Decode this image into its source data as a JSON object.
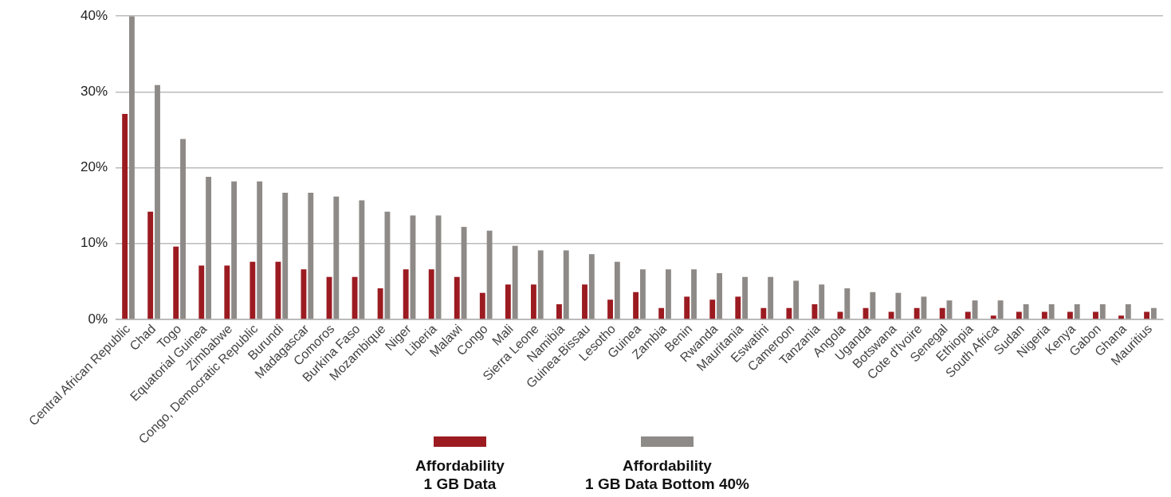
{
  "chart_data": {
    "type": "bar",
    "categories": [
      "Central African Republic",
      "Chad",
      "Togo",
      "Equatorial Guinea",
      "Zimbabwe",
      "Congo, Democratic Republic",
      "Burundi",
      "Madagascar",
      "Comoros",
      "Burkina Faso",
      "Mozambique",
      "Niger",
      "Liberia",
      "Malawi",
      "Congo",
      "Mali",
      "Sierra Leone",
      "Namibia",
      "Guinea-Bissau",
      "Lesotho",
      "Guinea",
      "Zambia",
      "Benin",
      "Rwanda",
      "Mauritania",
      "Eswatini",
      "Cameroon",
      "Tanzania",
      "Angola",
      "Uganda",
      "Botswana",
      "Cote d'Ivoire",
      "Senegal",
      "Ethiopia",
      "South Africa",
      "Sudan",
      "Nigeria",
      "Kenya",
      "Gabon",
      "Ghana",
      "Mauritius"
    ],
    "series": [
      {
        "name": "Affordability\n1 GB Data",
        "color": "#9b1b21",
        "values": [
          27.1,
          14.2,
          9.6,
          7.1,
          7.1,
          7.6,
          7.6,
          6.6,
          5.6,
          5.6,
          4.1,
          6.6,
          6.6,
          5.6,
          3.5,
          4.6,
          4.6,
          2.0,
          4.6,
          2.6,
          3.6,
          1.5,
          3.0,
          2.6,
          3.0,
          1.5,
          1.5,
          2.0,
          1.0,
          1.5,
          1.0,
          1.5,
          1.5,
          1.0,
          0.5,
          1.0,
          1.0,
          1.0,
          1.0,
          0.5,
          1.0
        ]
      },
      {
        "name": "Affordability\n1 GB Data Bottom 40%",
        "color": "#8e8a87",
        "values": [
          40,
          30.9,
          23.8,
          18.8,
          18.2,
          18.2,
          16.7,
          16.7,
          16.2,
          15.7,
          14.2,
          13.7,
          13.7,
          12.2,
          11.7,
          9.7,
          9.1,
          9.1,
          8.6,
          7.6,
          6.6,
          6.6,
          6.6,
          6.1,
          5.6,
          5.6,
          5.1,
          4.6,
          4.1,
          3.6,
          3.5,
          3.0,
          2.5,
          2.5,
          2.5,
          2.0,
          2.0,
          2.0,
          2.0,
          2.0,
          1.5
        ]
      }
    ],
    "ylim": [
      0,
      40
    ],
    "yticks": [
      {
        "value": 0,
        "label": "0%"
      },
      {
        "value": 10,
        "label": "10%"
      },
      {
        "value": 20,
        "label": "20%"
      },
      {
        "value": 30,
        "label": "30%"
      },
      {
        "value": 40,
        "label": "40%"
      }
    ],
    "grid": "y",
    "legend": "bottom"
  }
}
